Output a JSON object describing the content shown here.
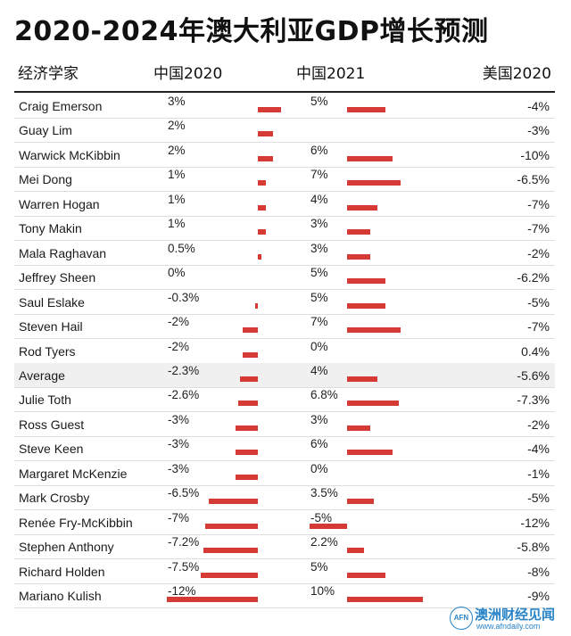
{
  "chart_data": {
    "type": "table",
    "title": "2020-2024年澳大利亚GDP增长预测",
    "columns": [
      "经济学家",
      "中国2020",
      "中国2021",
      "美国2020"
    ],
    "rows": [
      {
        "name": "Craig Emerson",
        "cn2020": "3%",
        "cn2021": "5%",
        "us2020": "-4%",
        "v1": 3,
        "v2": 5
      },
      {
        "name": "Guay Lim",
        "cn2020": "2%",
        "cn2021": "",
        "us2020": "-3%",
        "v1": 2,
        "v2": null
      },
      {
        "name": "Warwick McKibbin",
        "cn2020": "2%",
        "cn2021": "6%",
        "us2020": "-10%",
        "v1": 2,
        "v2": 6
      },
      {
        "name": "Mei Dong",
        "cn2020": "1%",
        "cn2021": "7%",
        "us2020": "-6.5%",
        "v1": 1,
        "v2": 7
      },
      {
        "name": "Warren Hogan",
        "cn2020": "1%",
        "cn2021": "4%",
        "us2020": "-7%",
        "v1": 1,
        "v2": 4
      },
      {
        "name": "Tony Makin",
        "cn2020": "1%",
        "cn2021": "3%",
        "us2020": "-7%",
        "v1": 1,
        "v2": 3
      },
      {
        "name": "Mala Raghavan",
        "cn2020": "0.5%",
        "cn2021": "3%",
        "us2020": "-2%",
        "v1": 0.5,
        "v2": 3
      },
      {
        "name": "Jeffrey Sheen",
        "cn2020": "0%",
        "cn2021": "5%",
        "us2020": "-6.2%",
        "v1": 0,
        "v2": 5
      },
      {
        "name": "Saul Eslake",
        "cn2020": "-0.3%",
        "cn2021": "5%",
        "us2020": "-5%",
        "v1": -0.3,
        "v2": 5
      },
      {
        "name": "Steven Hail",
        "cn2020": "-2%",
        "cn2021": "7%",
        "us2020": "-7%",
        "v1": -2,
        "v2": 7
      },
      {
        "name": "Rod Tyers",
        "cn2020": "-2%",
        "cn2021": "0%",
        "us2020": "0.4%",
        "v1": -2,
        "v2": 0
      },
      {
        "name": "Average",
        "cn2020": "-2.3%",
        "cn2021": "4%",
        "us2020": "-5.6%",
        "v1": -2.3,
        "v2": 4,
        "highlight": true
      },
      {
        "name": "Julie Toth",
        "cn2020": "-2.6%",
        "cn2021": "6.8%",
        "us2020": "-7.3%",
        "v1": -2.6,
        "v2": 6.8
      },
      {
        "name": "Ross Guest",
        "cn2020": "-3%",
        "cn2021": "3%",
        "us2020": "-2%",
        "v1": -3,
        "v2": 3
      },
      {
        "name": "Steve Keen",
        "cn2020": "-3%",
        "cn2021": "6%",
        "us2020": "-4%",
        "v1": -3,
        "v2": 6
      },
      {
        "name": "Margaret McKenzie",
        "cn2020": "-3%",
        "cn2021": "0%",
        "us2020": "-1%",
        "v1": -3,
        "v2": 0
      },
      {
        "name": "Mark Crosby",
        "cn2020": "-6.5%",
        "cn2021": "3.5%",
        "us2020": "-5%",
        "v1": -6.5,
        "v2": 3.5
      },
      {
        "name": "Renée Fry-McKibbin",
        "cn2020": "-7%",
        "cn2021": "-5%",
        "us2020": "-12%",
        "v1": -7,
        "v2": -5
      },
      {
        "name": "Stephen Anthony",
        "cn2020": "-7.2%",
        "cn2021": "2.2%",
        "us2020": "-5.8%",
        "v1": -7.2,
        "v2": 2.2
      },
      {
        "name": "Richard Holden",
        "cn2020": "-7.5%",
        "cn2021": "5%",
        "us2020": "-8%",
        "v1": -7.5,
        "v2": 5
      },
      {
        "name": "Mariano Kulish",
        "cn2020": "-12%",
        "cn2021": "10%",
        "us2020": "-9%",
        "v1": -12,
        "v2": 10
      }
    ],
    "bar_color": "#d63a34"
  },
  "logo": {
    "badge": "AFN",
    "name": "澳洲财经见闻",
    "url": "www.afndaily.com",
    "color": "#2a84c8"
  }
}
